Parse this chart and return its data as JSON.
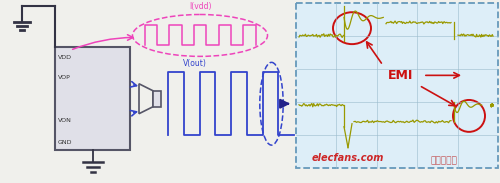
{
  "bg_color": "#f0f0ec",
  "left_panel": {
    "vdd_label": "VDD",
    "vop_label": "VOP",
    "von_label": "VON",
    "gnd_label": "GND",
    "ivdd_label": "I(vdd)",
    "vout_label": "V(out)"
  },
  "right_panel": {
    "emi_label": "EMI",
    "border_color": "#6699bb",
    "bg_color": "#ddeef8"
  },
  "watermark": "elecfans.com",
  "watermark2": "电子发烧友",
  "colors": {
    "pink": "#ee44bb",
    "blue": "#3344cc",
    "dark_blue": "#222288",
    "red": "#cc1111",
    "yellow_green": "#999900",
    "dark_line": "#333344",
    "amp_face": "#e0e0e8",
    "amp_edge": "#555566"
  }
}
